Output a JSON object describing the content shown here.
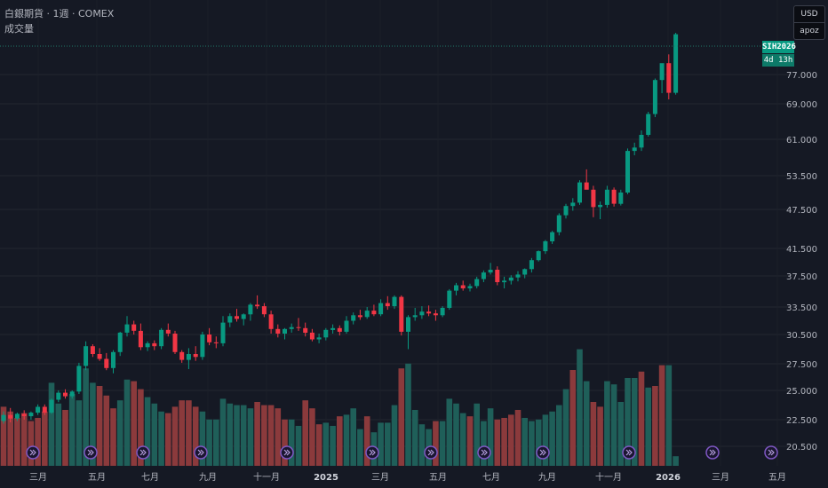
{
  "header": {
    "title": "白銀期貨 · 1週 · COMEX",
    "indicator": "成交量"
  },
  "currency": {
    "unit": "USD",
    "sub": "apoz"
  },
  "price_tags": {
    "symbol": "SIH2026",
    "countdown": "4d 13h"
  },
  "colors": {
    "background": "#151924",
    "grid": "#222631",
    "up": "#089981",
    "down": "#f23645",
    "vol_up": "#1f5f59",
    "vol_down": "#8b3a3c",
    "event_marker": "#7e57c2"
  },
  "chart_data": {
    "type": "candlestick",
    "y_axis_ticks": [
      20.5,
      22.5,
      25.0,
      27.5,
      30.5,
      33.5,
      37.5,
      41.5,
      47.5,
      53.5,
      61.0,
      69.0,
      77.0
    ],
    "y_axis_labels": [
      "20.500",
      "22.500",
      "25.000",
      "27.500",
      "30.500",
      "33.500",
      "37.500",
      "41.500",
      "47.500",
      "53.500",
      "61.000",
      "69.000",
      "77.000"
    ],
    "x_axis_labels": [
      "三月",
      "五月",
      "七月",
      "九月",
      "十一月",
      "2025",
      "三月",
      "五月",
      "七月",
      "九月",
      "十一月",
      "2026",
      "三月",
      "五月"
    ],
    "candles": [
      [
        22.4,
        23.2,
        22.2,
        22.9
      ],
      [
        22.9,
        23.5,
        22.3,
        22.6
      ],
      [
        22.6,
        23.1,
        22.4,
        23.0
      ],
      [
        23.0,
        23.3,
        22.5,
        22.8
      ],
      [
        22.8,
        23.2,
        22.5,
        23.1
      ],
      [
        23.1,
        23.8,
        22.9,
        23.6
      ],
      [
        23.6,
        23.8,
        22.9,
        23.1
      ],
      [
        23.1,
        24.3,
        23.0,
        24.2
      ],
      [
        24.2,
        25.0,
        24.0,
        24.8
      ],
      [
        24.8,
        25.1,
        24.3,
        24.5
      ],
      [
        24.5,
        25.0,
        24.3,
        24.9
      ],
      [
        24.9,
        27.6,
        24.7,
        27.3
      ],
      [
        27.3,
        29.8,
        26.9,
        29.3
      ],
      [
        29.3,
        29.5,
        28.2,
        28.5
      ],
      [
        28.5,
        29.1,
        27.8,
        28.0
      ],
      [
        28.0,
        28.6,
        26.9,
        27.1
      ],
      [
        27.1,
        28.9,
        26.6,
        28.7
      ],
      [
        28.7,
        30.8,
        28.3,
        30.7
      ],
      [
        30.7,
        32.5,
        30.3,
        31.6
      ],
      [
        31.6,
        32.0,
        30.5,
        30.9
      ],
      [
        30.9,
        31.7,
        28.9,
        29.2
      ],
      [
        29.2,
        29.8,
        28.8,
        29.6
      ],
      [
        29.6,
        29.9,
        28.9,
        29.3
      ],
      [
        29.3,
        31.2,
        29.0,
        31.0
      ],
      [
        31.0,
        31.7,
        30.3,
        30.6
      ],
      [
        30.6,
        30.9,
        28.5,
        28.7
      ],
      [
        28.7,
        28.9,
        27.6,
        27.9
      ],
      [
        27.9,
        29.1,
        27.0,
        28.5
      ],
      [
        28.5,
        29.3,
        27.8,
        28.2
      ],
      [
        28.2,
        30.8,
        27.9,
        30.5
      ],
      [
        30.5,
        31.2,
        29.4,
        29.7
      ],
      [
        29.7,
        30.3,
        29.1,
        29.6
      ],
      [
        29.6,
        32.5,
        29.3,
        31.8
      ],
      [
        31.8,
        32.8,
        31.3,
        32.5
      ],
      [
        32.5,
        33.3,
        31.9,
        32.2
      ],
      [
        32.2,
        32.8,
        31.5,
        32.7
      ],
      [
        32.7,
        34.0,
        32.0,
        33.8
      ],
      [
        33.8,
        35.0,
        33.3,
        33.6
      ],
      [
        33.6,
        34.0,
        32.4,
        32.7
      ],
      [
        32.7,
        33.1,
        30.6,
        31.1
      ],
      [
        31.1,
        31.6,
        30.2,
        30.6
      ],
      [
        30.6,
        31.2,
        30.0,
        31.1
      ],
      [
        31.1,
        31.7,
        30.7,
        31.3
      ],
      [
        31.3,
        32.3,
        30.9,
        31.2
      ],
      [
        31.2,
        31.8,
        30.3,
        30.7
      ],
      [
        30.7,
        31.1,
        29.8,
        30.0
      ],
      [
        30.0,
        30.6,
        29.6,
        30.2
      ],
      [
        30.2,
        31.2,
        29.9,
        31.0
      ],
      [
        31.0,
        31.6,
        30.6,
        31.2
      ],
      [
        31.2,
        31.5,
        30.4,
        30.8
      ],
      [
        30.8,
        32.5,
        30.6,
        32.0
      ],
      [
        32.0,
        32.9,
        31.6,
        32.6
      ],
      [
        32.6,
        33.2,
        32.1,
        32.4
      ],
      [
        32.4,
        33.5,
        32.2,
        33.1
      ],
      [
        33.1,
        33.8,
        32.5,
        32.7
      ],
      [
        32.7,
        34.5,
        32.5,
        34.0
      ],
      [
        34.0,
        34.9,
        33.2,
        33.6
      ],
      [
        33.6,
        35.0,
        33.3,
        34.8
      ],
      [
        34.8,
        35.0,
        30.4,
        30.8
      ],
      [
        30.8,
        32.6,
        29.0,
        32.4
      ],
      [
        32.4,
        33.4,
        32.0,
        32.6
      ],
      [
        32.6,
        33.6,
        32.2,
        33.0
      ],
      [
        33.0,
        33.7,
        32.5,
        32.8
      ],
      [
        32.8,
        33.2,
        32.0,
        32.6
      ],
      [
        32.6,
        33.6,
        32.4,
        33.4
      ],
      [
        33.4,
        35.8,
        33.2,
        35.6
      ],
      [
        35.6,
        36.6,
        35.0,
        36.3
      ],
      [
        36.3,
        36.9,
        35.6,
        35.9
      ],
      [
        35.9,
        36.5,
        35.5,
        36.2
      ],
      [
        36.2,
        37.4,
        35.9,
        37.1
      ],
      [
        37.1,
        38.3,
        36.7,
        38.0
      ],
      [
        38.0,
        39.4,
        37.7,
        38.4
      ],
      [
        38.4,
        38.9,
        36.3,
        36.7
      ],
      [
        36.7,
        37.4,
        35.9,
        36.9
      ],
      [
        36.9,
        37.6,
        36.4,
        37.3
      ],
      [
        37.3,
        38.2,
        36.8,
        37.7
      ],
      [
        37.7,
        38.6,
        37.2,
        38.5
      ],
      [
        38.5,
        40.1,
        38.0,
        39.8
      ],
      [
        39.8,
        41.2,
        39.6,
        41.1
      ],
      [
        41.1,
        42.8,
        40.7,
        42.6
      ],
      [
        42.6,
        44.2,
        42.2,
        44.0
      ],
      [
        44.0,
        46.9,
        43.5,
        46.6
      ],
      [
        46.6,
        48.5,
        46.1,
        48.1
      ],
      [
        48.1,
        49.5,
        47.3,
        48.7
      ],
      [
        48.7,
        52.7,
        48.3,
        52.3
      ],
      [
        52.3,
        54.8,
        51.5,
        51.0
      ],
      [
        51.0,
        51.7,
        46.3,
        47.9
      ],
      [
        47.9,
        48.9,
        46.0,
        48.3
      ],
      [
        48.3,
        51.7,
        47.8,
        51.0
      ],
      [
        51.0,
        51.4,
        48.0,
        48.5
      ],
      [
        48.5,
        51.0,
        48.2,
        50.5
      ],
      [
        50.5,
        59.1,
        50.2,
        58.6
      ],
      [
        58.6,
        60.3,
        57.7,
        59.3
      ],
      [
        59.3,
        63.0,
        58.6,
        62.0
      ],
      [
        62.0,
        67.2,
        61.6,
        66.7
      ],
      [
        66.7,
        75.9,
        66.0,
        75.5
      ],
      [
        75.5,
        79.6,
        71.9,
        80.1
      ],
      [
        80.1,
        82.5,
        70.2,
        72.0
      ],
      [
        72.0,
        88.4,
        71.5,
        88.0
      ]
    ],
    "volumes": [
      [
        3.7,
        0
      ],
      [
        3.4,
        0
      ],
      [
        3.0,
        0
      ],
      [
        3.3,
        0
      ],
      [
        2.8,
        0
      ],
      [
        3.0,
        0
      ],
      [
        3.4,
        0
      ],
      [
        5.2,
        1
      ],
      [
        3.9,
        1
      ],
      [
        3.5,
        0
      ],
      [
        4.5,
        1
      ],
      [
        4.1,
        1
      ],
      [
        6.1,
        1
      ],
      [
        5.2,
        1
      ],
      [
        5.0,
        0
      ],
      [
        4.4,
        0
      ],
      [
        3.6,
        0
      ],
      [
        4.1,
        1
      ],
      [
        5.4,
        1
      ],
      [
        5.3,
        0
      ],
      [
        4.8,
        0
      ],
      [
        4.3,
        1
      ],
      [
        3.9,
        1
      ],
      [
        3.4,
        1
      ],
      [
        3.3,
        0
      ],
      [
        3.7,
        0
      ],
      [
        4.1,
        0
      ],
      [
        4.1,
        0
      ],
      [
        3.7,
        0
      ],
      [
        3.4,
        1
      ],
      [
        2.9,
        1
      ],
      [
        2.9,
        1
      ],
      [
        4.2,
        1
      ],
      [
        3.9,
        1
      ],
      [
        3.8,
        1
      ],
      [
        3.8,
        1
      ],
      [
        3.6,
        1
      ],
      [
        4.0,
        0
      ],
      [
        3.8,
        0
      ],
      [
        3.8,
        0
      ],
      [
        3.6,
        0
      ],
      [
        2.9,
        0
      ],
      [
        2.9,
        1
      ],
      [
        2.5,
        1
      ],
      [
        4.1,
        0
      ],
      [
        3.6,
        0
      ],
      [
        2.6,
        0
      ],
      [
        2.7,
        1
      ],
      [
        2.5,
        1
      ],
      [
        3.1,
        0
      ],
      [
        3.2,
        1
      ],
      [
        3.6,
        1
      ],
      [
        2.3,
        1
      ],
      [
        3.1,
        0
      ],
      [
        2.1,
        1
      ],
      [
        2.7,
        1
      ],
      [
        2.7,
        1
      ],
      [
        3.8,
        1
      ],
      [
        6.1,
        0
      ],
      [
        6.4,
        1
      ],
      [
        3.5,
        1
      ],
      [
        2.6,
        1
      ],
      [
        2.3,
        1
      ],
      [
        2.8,
        0
      ],
      [
        2.8,
        1
      ],
      [
        4.2,
        1
      ],
      [
        3.9,
        1
      ],
      [
        3.3,
        1
      ],
      [
        3.1,
        0
      ],
      [
        3.9,
        1
      ],
      [
        2.8,
        1
      ],
      [
        3.6,
        1
      ],
      [
        2.9,
        0
      ],
      [
        3.0,
        0
      ],
      [
        3.2,
        0
      ],
      [
        3.5,
        0
      ],
      [
        3.0,
        1
      ],
      [
        2.8,
        1
      ],
      [
        2.9,
        1
      ],
      [
        3.2,
        1
      ],
      [
        3.4,
        1
      ],
      [
        3.8,
        1
      ],
      [
        4.8,
        1
      ],
      [
        6.0,
        0
      ],
      [
        7.3,
        1
      ],
      [
        5.3,
        1
      ],
      [
        4.0,
        0
      ],
      [
        3.7,
        0
      ],
      [
        5.3,
        1
      ],
      [
        5.1,
        1
      ],
      [
        4.0,
        1
      ],
      [
        5.5,
        1
      ],
      [
        5.5,
        1
      ],
      [
        5.9,
        0
      ],
      [
        4.9,
        1
      ],
      [
        5.0,
        0
      ],
      [
        6.3,
        0
      ],
      [
        6.3,
        1
      ],
      [
        0.6,
        1
      ]
    ]
  }
}
